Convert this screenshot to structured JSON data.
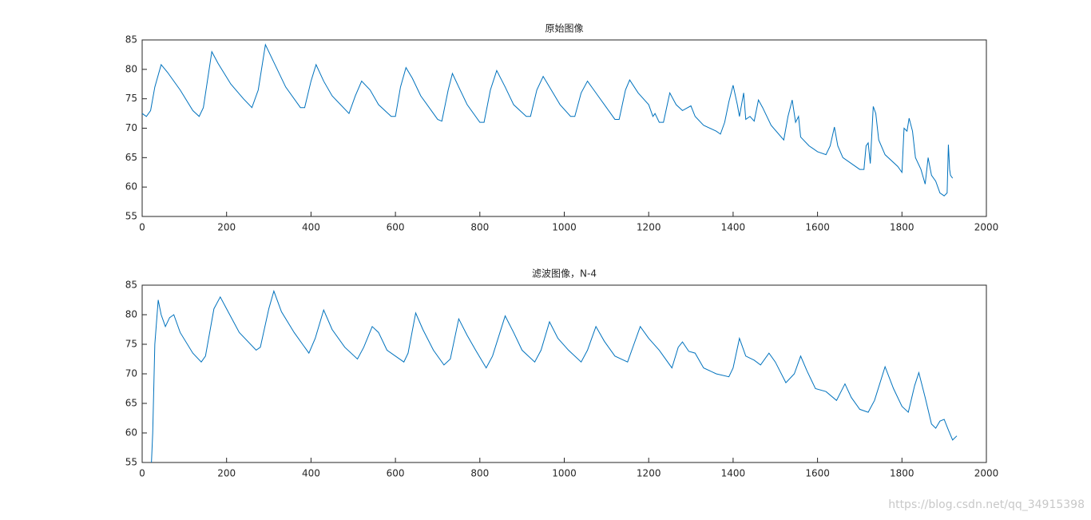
{
  "chart_data": [
    {
      "type": "line",
      "title": "原始图像",
      "color": "#0072bd",
      "x": [
        0,
        10,
        20,
        30,
        45,
        60,
        90,
        120,
        135,
        145,
        165,
        180,
        210,
        240,
        260,
        275,
        292,
        310,
        340,
        375,
        385,
        400,
        412,
        430,
        450,
        490,
        505,
        520,
        540,
        560,
        590,
        600,
        612,
        625,
        640,
        660,
        700,
        710,
        725,
        735,
        750,
        770,
        800,
        810,
        825,
        840,
        860,
        880,
        910,
        920,
        935,
        950,
        965,
        990,
        1015,
        1025,
        1040,
        1055,
        1070,
        1100,
        1120,
        1130,
        1145,
        1155,
        1175,
        1200,
        1210,
        1215,
        1225,
        1235,
        1250,
        1265,
        1280,
        1300,
        1310,
        1330,
        1360,
        1370,
        1380,
        1390,
        1400,
        1410,
        1415,
        1425,
        1430,
        1440,
        1450,
        1460,
        1470,
        1490,
        1520,
        1530,
        1540,
        1548,
        1555,
        1560,
        1580,
        1600,
        1620,
        1630,
        1640,
        1648,
        1660,
        1680,
        1700,
        1710,
        1715,
        1720,
        1725,
        1732,
        1738,
        1745,
        1760,
        1790,
        1800,
        1805,
        1812,
        1817,
        1825,
        1832,
        1845,
        1855,
        1862,
        1870,
        1880,
        1890,
        1900,
        1907,
        1910,
        1913,
        1915,
        1920
      ],
      "values": [
        72.5,
        72,
        73,
        77,
        80.8,
        79.5,
        76.5,
        73,
        72,
        73.5,
        83,
        81,
        77.5,
        75,
        73.5,
        76.5,
        84.2,
        81.5,
        77,
        73.5,
        73.5,
        78,
        80.8,
        78,
        75.5,
        72.5,
        75.5,
        78,
        76.5,
        74,
        72,
        72,
        77,
        80.3,
        78.5,
        75.5,
        71.5,
        71.2,
        76.5,
        79.3,
        77,
        74,
        71,
        71,
        76.5,
        79.8,
        77,
        74,
        72,
        72,
        76.5,
        78.8,
        77,
        74,
        72,
        72,
        76,
        78,
        76.5,
        73.5,
        71.5,
        71.5,
        76.5,
        78.2,
        76,
        74,
        72,
        72.5,
        71,
        71,
        76,
        74,
        73,
        73.8,
        72,
        70.5,
        69.5,
        69,
        71,
        74.5,
        77.3,
        74,
        72,
        76,
        71.5,
        72,
        71.2,
        74.8,
        73.5,
        70.5,
        68,
        72,
        74.8,
        71,
        72,
        68.5,
        67,
        66,
        65.5,
        67,
        70.2,
        67,
        65,
        64,
        63,
        63,
        67,
        67.5,
        64,
        73.7,
        72.5,
        68,
        65.5,
        63.5,
        62.5,
        70,
        69.5,
        71.7,
        69.5,
        65,
        63,
        60.5,
        65,
        62,
        61,
        59,
        58.5,
        59,
        67.2,
        63,
        62,
        61.5
      ],
      "xlim": [
        0,
        2000
      ],
      "xticks": [
        0,
        200,
        400,
        600,
        800,
        1000,
        1200,
        1400,
        1600,
        1800,
        2000
      ],
      "ylim": [
        55,
        85
      ],
      "yticks": [
        55,
        60,
        65,
        70,
        75,
        80,
        85
      ]
    },
    {
      "type": "line",
      "title": "滤波图像，N-4",
      "color": "#0072bd",
      "x": [
        22,
        25,
        30,
        38,
        45,
        55,
        65,
        75,
        90,
        120,
        140,
        150,
        170,
        185,
        200,
        230,
        270,
        280,
        300,
        312,
        330,
        360,
        395,
        410,
        430,
        450,
        480,
        510,
        525,
        545,
        560,
        580,
        620,
        630,
        648,
        665,
        690,
        715,
        730,
        750,
        770,
        790,
        815,
        830,
        860,
        880,
        900,
        930,
        945,
        965,
        985,
        1010,
        1040,
        1055,
        1075,
        1095,
        1120,
        1150,
        1165,
        1180,
        1200,
        1225,
        1255,
        1270,
        1280,
        1295,
        1310,
        1330,
        1360,
        1390,
        1400,
        1415,
        1430,
        1450,
        1465,
        1485,
        1500,
        1525,
        1545,
        1560,
        1575,
        1595,
        1620,
        1645,
        1665,
        1680,
        1700,
        1720,
        1735,
        1760,
        1780,
        1800,
        1815,
        1830,
        1840,
        1855,
        1870,
        1880,
        1890,
        1900,
        1910,
        1920,
        1930
      ],
      "values": [
        55,
        60,
        75,
        82.5,
        80,
        78,
        79.5,
        80,
        77,
        73.5,
        72,
        73,
        81,
        83,
        81,
        77,
        74,
        74.5,
        81,
        84,
        80.5,
        77,
        73.5,
        76,
        80.8,
        77.5,
        74.5,
        72.5,
        74.5,
        78,
        77,
        74,
        72,
        73.5,
        80.3,
        77.5,
        74,
        71.5,
        72.5,
        79.3,
        76.5,
        74,
        71,
        73,
        79.8,
        77,
        74,
        72,
        74,
        78.8,
        76,
        74,
        72,
        74,
        78,
        75.5,
        73,
        72,
        75,
        78,
        76,
        74,
        71,
        74.5,
        75.4,
        73.8,
        73.5,
        71,
        70,
        69.5,
        71,
        76,
        73,
        72.3,
        71.5,
        73.5,
        72,
        68.5,
        70,
        73,
        70.5,
        67.5,
        67,
        65.5,
        68.3,
        66,
        64,
        63.5,
        65.5,
        71.2,
        67.5,
        64.5,
        63.5,
        68,
        70.2,
        66,
        61.5,
        60.8,
        62,
        62.3,
        60.5,
        58.8,
        59.5
      ],
      "xlim": [
        0,
        2000
      ],
      "xticks": [
        0,
        200,
        400,
        600,
        800,
        1000,
        1200,
        1400,
        1600,
        1800,
        2000
      ],
      "ylim": [
        55,
        85
      ],
      "yticks": [
        55,
        60,
        65,
        70,
        75,
        80,
        85
      ]
    }
  ],
  "watermark": "https://blog.csdn.net/qq_34915398"
}
